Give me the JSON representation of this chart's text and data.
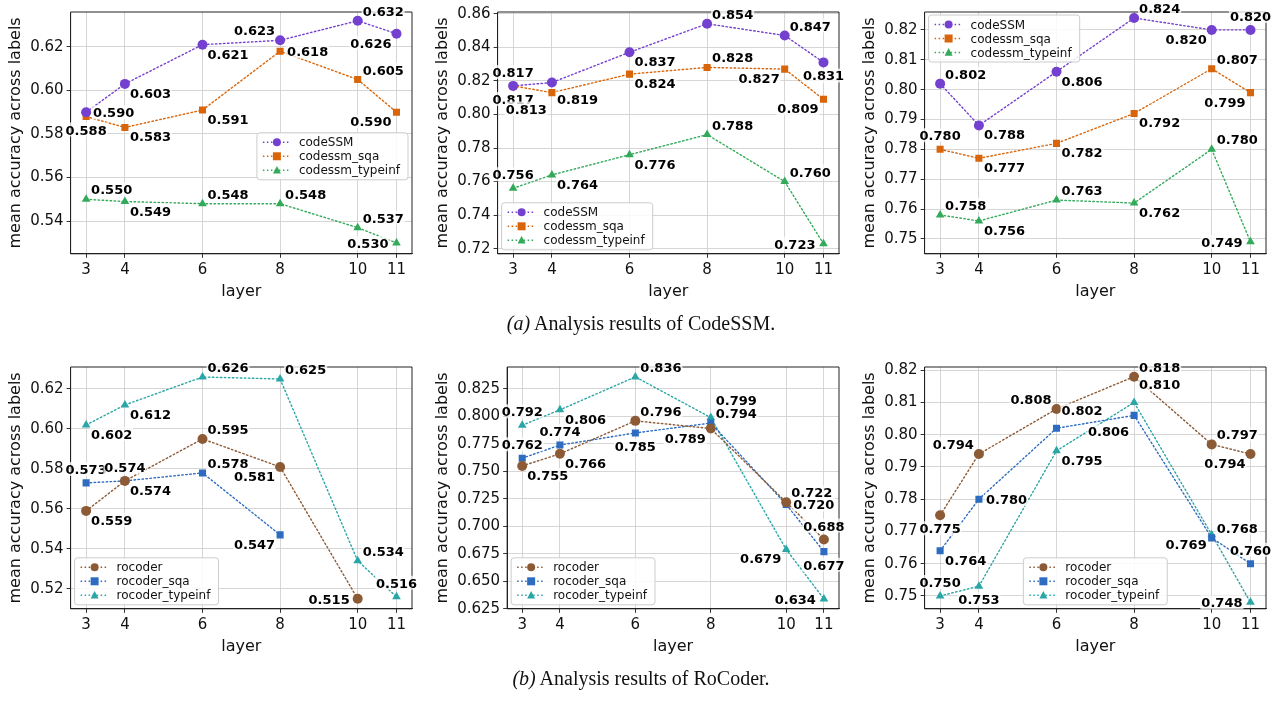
{
  "chart_data": [
    {
      "type": "line",
      "xlabel": "layer",
      "ylabel": "mean accuracy across labels",
      "x": [
        3,
        4,
        6,
        8,
        10,
        11
      ],
      "xlim": [
        2.6,
        11.4
      ],
      "xticks": [
        3,
        4,
        6,
        8,
        10,
        11
      ],
      "ylim": [
        0.525,
        0.636
      ],
      "yticks": [
        0.54,
        0.56,
        0.58,
        {
          "value": 0.6,
          "label": "0.60"
        },
        0.62
      ],
      "grid": true,
      "line_style": "dotted",
      "legend": "center right",
      "series": [
        {
          "name": "codeSSM",
          "color": "#7440d0",
          "marker": "circle",
          "values": [
            0.59,
            0.603,
            0.621,
            0.623,
            0.632,
            0.626
          ],
          "value_labels": [
            "0.590",
            "0.603",
            "0.621",
            "0.623",
            "0.632",
            "0.626"
          ]
        },
        {
          "name": "codessm_sqa",
          "color": "#d9650a",
          "marker": "square",
          "values": [
            0.588,
            0.583,
            0.591,
            0.618,
            0.605,
            0.59
          ],
          "value_labels": [
            "0.588",
            "0.583",
            "0.591",
            "0.618",
            "0.605",
            "0.590"
          ]
        },
        {
          "name": "codessm_typeinf",
          "color": "#33aa5a",
          "marker": "triangle",
          "values": [
            0.55,
            0.549,
            0.548,
            0.548,
            0.537,
            0.53
          ],
          "value_labels": [
            "0.550",
            "0.549",
            "0.548",
            "0.548",
            "0.537",
            "0.530"
          ]
        }
      ]
    },
    {
      "type": "line",
      "xlabel": "layer",
      "ylabel": "mean accuracy across labels",
      "x": [
        3,
        4,
        6,
        8,
        10,
        11
      ],
      "xlim": [
        2.6,
        11.4
      ],
      "xticks": [
        3,
        4,
        6,
        8,
        10,
        11
      ],
      "ylim": [
        0.717,
        0.861
      ],
      "yticks": [
        0.72,
        0.74,
        0.76,
        0.78,
        {
          "value": 0.8,
          "label": "0.80"
        },
        0.82,
        0.84,
        0.86
      ],
      "grid": true,
      "line_style": "dotted",
      "legend": "bottom left",
      "annotations": [
        "(a) Analysis results of CodeSSM."
      ],
      "series": [
        {
          "name": "codeSSM",
          "color": "#7440d0",
          "marker": "circle",
          "values": [
            0.817,
            0.819,
            0.837,
            0.854,
            0.847,
            0.831
          ],
          "value_labels": [
            "0.817",
            "0.819",
            "0.837",
            "0.854",
            "0.847",
            "0.831"
          ]
        },
        {
          "name": "codessm_sqa",
          "color": "#d9650a",
          "marker": "square",
          "values": [
            0.817,
            0.813,
            0.824,
            0.828,
            0.827,
            0.809
          ],
          "value_labels": [
            "0.817",
            "0.813",
            "0.824",
            "0.828",
            "0.827",
            "0.809"
          ]
        },
        {
          "name": "codessm_typeinf",
          "color": "#33aa5a",
          "marker": "triangle",
          "values": [
            0.756,
            0.764,
            0.776,
            0.788,
            0.76,
            0.723
          ],
          "value_labels": [
            "0.756",
            "0.764",
            "0.776",
            "0.788",
            "0.760",
            "0.723"
          ]
        }
      ]
    },
    {
      "type": "line",
      "xlabel": "layer",
      "ylabel": "mean accuracy across labels",
      "x": [
        3,
        4,
        6,
        8,
        10,
        11
      ],
      "xlim": [
        2.6,
        11.4
      ],
      "xticks": [
        3,
        4,
        6,
        8,
        10,
        11
      ],
      "ylim": [
        0.745,
        0.826
      ],
      "yticks": [
        0.75,
        0.76,
        0.77,
        0.78,
        0.79,
        {
          "value": 0.8,
          "label": "0.80"
        },
        0.81,
        0.82
      ],
      "grid": true,
      "line_style": "dotted",
      "legend": "top left",
      "series": [
        {
          "name": "codeSSM",
          "color": "#7440d0",
          "marker": "circle",
          "values": [
            0.802,
            0.788,
            0.806,
            0.824,
            0.82,
            0.82
          ],
          "value_labels": [
            "0.802",
            "0.788",
            "0.806",
            "0.824",
            "0.820",
            "0.820"
          ]
        },
        {
          "name": "codessm_sqa",
          "color": "#d9650a",
          "marker": "square",
          "values": [
            0.78,
            0.777,
            0.782,
            0.792,
            0.807,
            0.799
          ],
          "value_labels": [
            "0.780",
            "0.777",
            "0.782",
            "0.792",
            "0.807",
            "0.799"
          ]
        },
        {
          "name": "codessm_typeinf",
          "color": "#33aa5a",
          "marker": "triangle",
          "values": [
            0.758,
            0.756,
            0.763,
            0.762,
            0.78,
            0.749
          ],
          "value_labels": [
            "0.758",
            "0.756",
            "0.763",
            "0.762",
            "0.780",
            "0.749"
          ]
        }
      ]
    },
    {
      "type": "line",
      "xlabel": "layer",
      "ylabel": "mean accuracy across labels",
      "x": [
        3,
        4,
        6,
        8,
        10,
        11
      ],
      "xlim": [
        2.6,
        11.4
      ],
      "xticks": [
        3,
        4,
        6,
        8,
        10,
        11
      ],
      "ylim": [
        0.51,
        0.631
      ],
      "yticks": [
        0.52,
        0.54,
        0.56,
        0.58,
        {
          "value": 0.6,
          "label": "0.60"
        },
        0.62
      ],
      "grid": true,
      "line_style": "dotted",
      "legend": "bottom left",
      "series": [
        {
          "name": "rocoder",
          "color": "#8c5a35",
          "marker": "circle",
          "values": [
            0.559,
            0.574,
            0.595,
            0.581,
            0.515,
            null
          ],
          "value_labels": [
            "0.559",
            "0.574",
            "0.595",
            "0.581",
            "0.515",
            null
          ]
        },
        {
          "name": "rocoder_sqa",
          "color": "#2d6cc0",
          "marker": "square",
          "values": [
            0.573,
            0.574,
            0.578,
            0.547,
            null,
            null
          ],
          "value_labels": [
            "0.573",
            "0.574",
            "0.578",
            "0.547",
            null,
            null
          ]
        },
        {
          "name": "rocoder_typeinf",
          "color": "#2aa6a6",
          "marker": "triangle",
          "values": [
            0.602,
            0.612,
            0.626,
            0.625,
            0.534,
            0.516
          ],
          "value_labels": [
            "0.602",
            "0.612",
            "0.626",
            "0.625",
            "0.534",
            "0.516"
          ]
        }
      ]
    },
    {
      "type": "line",
      "xlabel": "layer",
      "ylabel": "mean accuracy across labels",
      "x": [
        3,
        4,
        6,
        8,
        10,
        11
      ],
      "xlim": [
        2.6,
        11.4
      ],
      "xticks": [
        3,
        4,
        6,
        8,
        10,
        11
      ],
      "ylim": [
        0.625,
        0.845
      ],
      "yticks": [
        0.625,
        {
          "value": 0.65,
          "label": "0.650"
        },
        0.675,
        {
          "value": 0.7,
          "label": "0.700"
        },
        0.725,
        {
          "value": 0.75,
          "label": "0.750"
        },
        0.775,
        {
          "value": 0.8,
          "label": "0.800"
        },
        0.825
      ],
      "grid": true,
      "line_style": "dotted",
      "legend": "bottom left",
      "annotations": [
        "(b) Analysis results of RoCoder."
      ],
      "series": [
        {
          "name": "rocoder",
          "color": "#8c5a35",
          "marker": "circle",
          "values": [
            0.755,
            0.766,
            0.796,
            0.789,
            0.722,
            0.688
          ],
          "value_labels": [
            "0.755",
            "0.766",
            "0.796",
            "0.789",
            "0.722",
            "0.688"
          ]
        },
        {
          "name": "rocoder_sqa",
          "color": "#2d6cc0",
          "marker": "square",
          "values": [
            0.762,
            0.774,
            0.785,
            0.794,
            0.72,
            0.677
          ],
          "value_labels": [
            "0.762",
            "0.774",
            "0.785",
            "0.794",
            "0.720",
            "0.677"
          ]
        },
        {
          "name": "rocoder_typeinf",
          "color": "#2aa6a6",
          "marker": "triangle",
          "values": [
            0.792,
            0.806,
            0.836,
            0.799,
            0.679,
            0.634
          ],
          "value_labels": [
            "0.792",
            "0.806",
            "0.836",
            "0.799",
            "0.679",
            "0.634"
          ]
        }
      ]
    },
    {
      "type": "line",
      "xlabel": "layer",
      "ylabel": "mean accuracy across labels",
      "x": [
        3,
        4,
        6,
        8,
        10,
        11
      ],
      "xlim": [
        2.6,
        11.4
      ],
      "xticks": [
        3,
        4,
        6,
        8,
        10,
        11
      ],
      "ylim": [
        0.746,
        0.821
      ],
      "yticks": [
        0.75,
        0.76,
        0.77,
        0.78,
        0.79,
        {
          "value": 0.8,
          "label": "0.80"
        },
        0.81,
        0.82
      ],
      "grid": true,
      "line_style": "dotted",
      "legend": "bottom",
      "series": [
        {
          "name": "rocoder",
          "color": "#8c5a35",
          "marker": "circle",
          "values": [
            0.775,
            0.794,
            0.808,
            0.818,
            0.797,
            0.794
          ],
          "value_labels": [
            "0.775",
            "0.794",
            "0.808",
            "0.818",
            "0.797",
            "0.794"
          ]
        },
        {
          "name": "rocoder_sqa",
          "color": "#2d6cc0",
          "marker": "square",
          "values": [
            0.764,
            0.78,
            0.802,
            0.806,
            0.768,
            0.76
          ],
          "value_labels": [
            "0.764",
            "0.780",
            "0.802",
            "0.806",
            "0.768",
            "0.760"
          ]
        },
        {
          "name": "rocoder_typeinf",
          "color": "#2aa6a6",
          "marker": "triangle",
          "values": [
            0.75,
            0.753,
            0.795,
            0.81,
            0.769,
            0.748
          ],
          "value_labels": [
            "0.750",
            "0.753",
            "0.795",
            "0.810",
            "0.769",
            "0.748"
          ]
        }
      ]
    }
  ]
}
